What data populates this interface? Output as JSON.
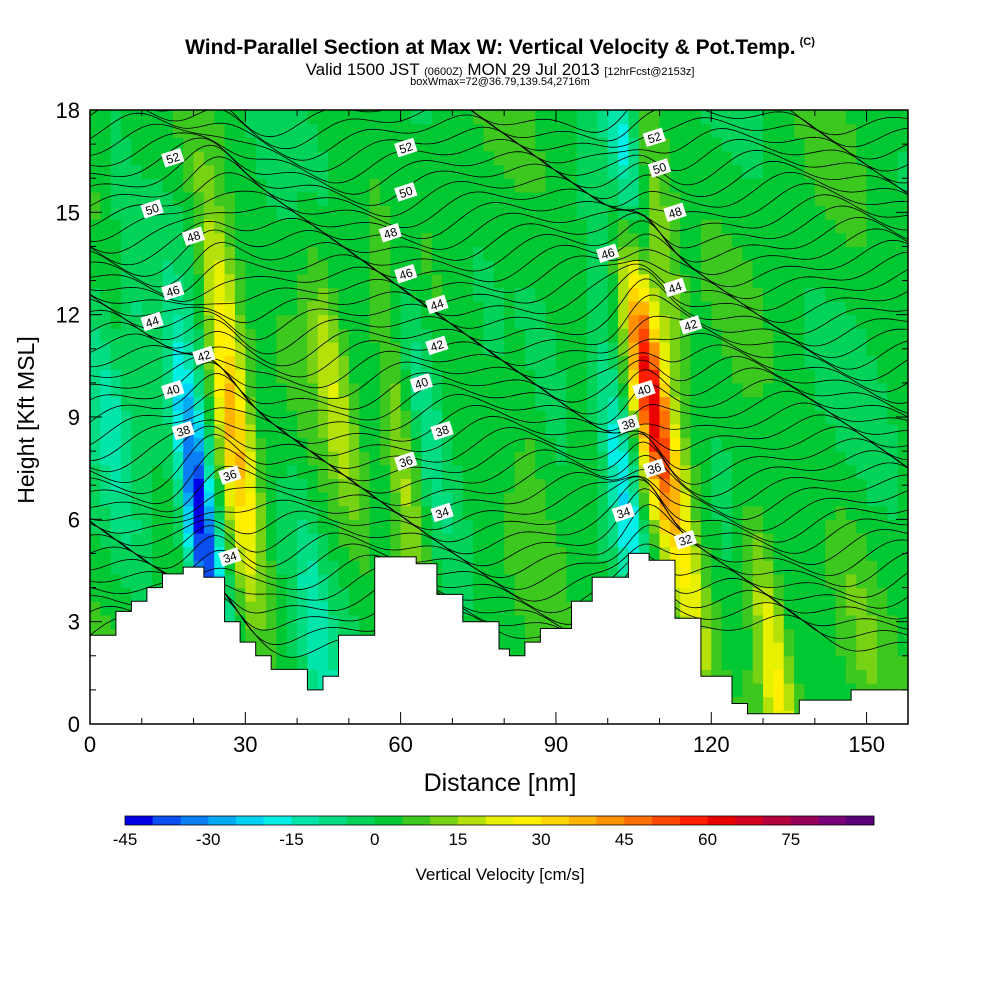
{
  "chart_data": {
    "type": "heatmap",
    "title": "Wind-Parallel Section at Max W: Vertical Velocity & Pot.Temp.",
    "title_mark": "(C)",
    "subtitle_main": "Valid 1500 JST",
    "subtitle_zulu": "(0600Z)",
    "subtitle_date": "MON 29 Jul 2013",
    "subtitle_fcst": "[12hrFcst@2153z]",
    "subtitle2": "boxWmax=72@36.79,139.54,2716m",
    "xlabel": "Distance [nm]",
    "ylabel": "Height [Kft MSL]",
    "xlim": [
      0,
      158
    ],
    "ylim": [
      0,
      18
    ],
    "xticks": [
      "0",
      "30",
      "60",
      "90",
      "120",
      "150"
    ],
    "yticks": [
      "0",
      "3",
      "6",
      "9",
      "12",
      "15",
      "18"
    ],
    "colorbar": {
      "label": "Vertical Velocity [cm/s]",
      "ticks": [
        "-45",
        "-30",
        "-15",
        "0",
        "15",
        "30",
        "45",
        "60",
        "75"
      ],
      "levels": [
        -45,
        -40,
        -35,
        -30,
        -25,
        -20,
        -15,
        -10,
        -5,
        0,
        5,
        10,
        15,
        20,
        25,
        30,
        35,
        40,
        45,
        50,
        55,
        60,
        65,
        70,
        75,
        80,
        85
      ],
      "colors": [
        "#0000e6",
        "#0a4ef0",
        "#0a7ef5",
        "#05aaf5",
        "#00d2f5",
        "#00f0e6",
        "#00e6aa",
        "#00dc82",
        "#00d25a",
        "#00c832",
        "#3cc81e",
        "#78d214",
        "#b4e10a",
        "#e6f000",
        "#fff000",
        "#ffd700",
        "#ffb400",
        "#ff9100",
        "#ff6e00",
        "#ff4600",
        "#ff1e00",
        "#eb0000",
        "#d2001e",
        "#b4003c",
        "#96005a",
        "#780078",
        "#5a0078"
      ]
    },
    "terrain_kft": [
      [
        0,
        2.6
      ],
      [
        5,
        3.3
      ],
      [
        8,
        3.6
      ],
      [
        11,
        4.0
      ],
      [
        14,
        4.4
      ],
      [
        18,
        4.6
      ],
      [
        22,
        4.3
      ],
      [
        26,
        3.0
      ],
      [
        29,
        2.4
      ],
      [
        32,
        2.0
      ],
      [
        35,
        1.6
      ],
      [
        42,
        1.0
      ],
      [
        45,
        1.4
      ],
      [
        48,
        2.6
      ],
      [
        55,
        4.9
      ],
      [
        60,
        4.9
      ],
      [
        63,
        4.7
      ],
      [
        67,
        3.8
      ],
      [
        72,
        3.0
      ],
      [
        79,
        2.2
      ],
      [
        81,
        2.0
      ],
      [
        84,
        2.4
      ],
      [
        87,
        2.8
      ],
      [
        93,
        3.6
      ],
      [
        97,
        4.3
      ],
      [
        104,
        5.0
      ],
      [
        108,
        4.8
      ],
      [
        113,
        3.1
      ],
      [
        118,
        1.4
      ],
      [
        124,
        0.6
      ],
      [
        127,
        0.3
      ],
      [
        135,
        0.3
      ],
      [
        137,
        0.7
      ],
      [
        145,
        0.7
      ],
      [
        147,
        1.0
      ],
      [
        158,
        1.0
      ]
    ],
    "w_features_cm_s": [
      {
        "x": 4,
        "y": 9,
        "w": -12
      },
      {
        "x": 9,
        "y": 12,
        "w": -8
      },
      {
        "x": 20,
        "y": 8,
        "w": -15
      },
      {
        "x": 22,
        "y": 5.2,
        "w": -40
      },
      {
        "x": 26,
        "y": 12,
        "w": 18
      },
      {
        "x": 28,
        "y": 8,
        "w": 30
      },
      {
        "x": 44,
        "y": 2.5,
        "w": -12
      },
      {
        "x": 47,
        "y": 10,
        "w": 15
      },
      {
        "x": 61,
        "y": 7,
        "w": 18
      },
      {
        "x": 64,
        "y": 10,
        "w": -10
      },
      {
        "x": 84,
        "y": 9,
        "w": 5
      },
      {
        "x": 103,
        "y": 7,
        "w": -25
      },
      {
        "x": 103,
        "y": 17,
        "w": -20
      },
      {
        "x": 108,
        "y": 10,
        "w": 60
      },
      {
        "x": 110,
        "y": 14,
        "w": 15
      },
      {
        "x": 116,
        "y": 4,
        "w": 18
      },
      {
        "x": 132,
        "y": 2,
        "w": 25
      },
      {
        "x": 149,
        "y": 3,
        "w": 5
      }
    ],
    "theta_contours_c": [
      {
        "value": "32",
        "x": 115,
        "y": 5.4
      },
      {
        "value": "34",
        "x": 27,
        "y": 4.9
      },
      {
        "value": "34",
        "x": 68,
        "y": 6.2
      },
      {
        "value": "34",
        "x": 103,
        "y": 6.2
      },
      {
        "value": "36",
        "x": 27,
        "y": 7.3
      },
      {
        "value": "36",
        "x": 61,
        "y": 7.7
      },
      {
        "value": "36",
        "x": 109,
        "y": 7.5
      },
      {
        "value": "38",
        "x": 18,
        "y": 8.6
      },
      {
        "value": "38",
        "x": 68,
        "y": 8.6
      },
      {
        "value": "38",
        "x": 104,
        "y": 8.8
      },
      {
        "value": "40",
        "x": 16,
        "y": 9.8
      },
      {
        "value": "40",
        "x": 64,
        "y": 10.0
      },
      {
        "value": "40",
        "x": 107,
        "y": 9.8
      },
      {
        "value": "42",
        "x": 22,
        "y": 10.8
      },
      {
        "value": "42",
        "x": 67,
        "y": 11.1
      },
      {
        "value": "42",
        "x": 116,
        "y": 11.7
      },
      {
        "value": "44",
        "x": 12,
        "y": 11.8
      },
      {
        "value": "44",
        "x": 67,
        "y": 12.3
      },
      {
        "value": "44",
        "x": 113,
        "y": 12.8
      },
      {
        "value": "46",
        "x": 16,
        "y": 12.7
      },
      {
        "value": "46",
        "x": 61,
        "y": 13.2
      },
      {
        "value": "46",
        "x": 100,
        "y": 13.8
      },
      {
        "value": "48",
        "x": 20,
        "y": 14.3
      },
      {
        "value": "48",
        "x": 58,
        "y": 14.4
      },
      {
        "value": "48",
        "x": 113,
        "y": 15.0
      },
      {
        "value": "50",
        "x": 12,
        "y": 15.1
      },
      {
        "value": "50",
        "x": 61,
        "y": 15.6
      },
      {
        "value": "50",
        "x": 110,
        "y": 16.3
      },
      {
        "value": "52",
        "x": 16,
        "y": 16.6
      },
      {
        "value": "52",
        "x": 61,
        "y": 16.9
      },
      {
        "value": "52",
        "x": 109,
        "y": 17.2
      }
    ]
  }
}
